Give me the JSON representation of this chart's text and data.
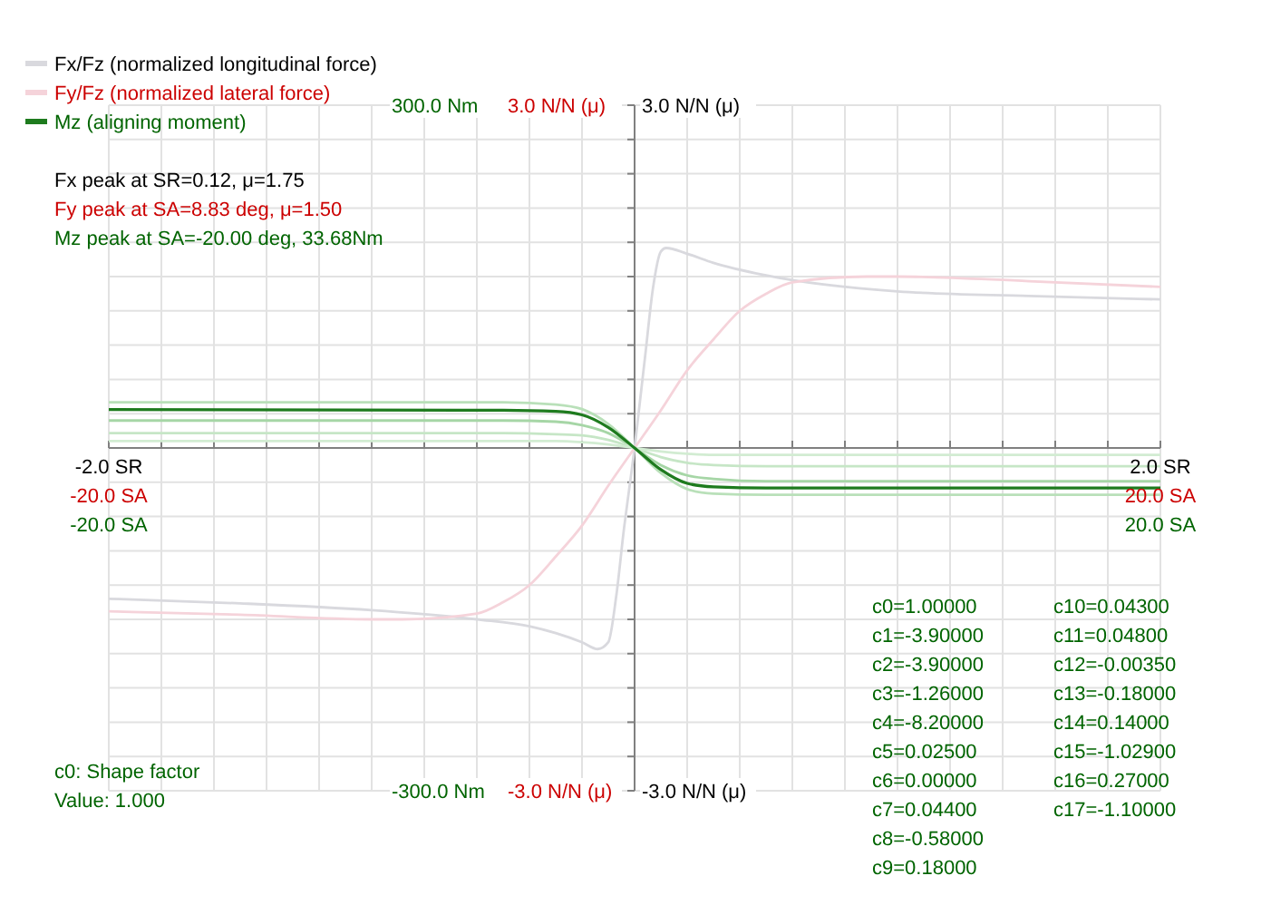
{
  "chart_data": {
    "type": "line",
    "xlim": [
      -20,
      20
    ],
    "xticks": [
      {
        "value": -20,
        "label": "-20.0 SA"
      },
      {
        "value": -18,
        "label": null
      },
      {
        "value": -16,
        "label": null
      },
      {
        "value": -14,
        "label": null
      },
      {
        "value": -12,
        "label": null
      },
      {
        "value": -10,
        "label": null
      },
      {
        "value": -8,
        "label": null
      },
      {
        "value": -6,
        "label": null
      },
      {
        "value": -4,
        "label": null
      },
      {
        "value": -2,
        "label": null
      },
      {
        "value": 0,
        "label": null
      },
      {
        "value": 2,
        "label": null
      },
      {
        "value": 4,
        "label": null
      },
      {
        "value": 6,
        "label": null
      },
      {
        "value": 8,
        "label": null
      },
      {
        "value": 10,
        "label": null
      },
      {
        "value": 12,
        "label": null
      },
      {
        "value": 14,
        "label": null
      },
      {
        "value": 16,
        "label": null
      },
      {
        "value": 18,
        "label": null
      },
      {
        "value": 20,
        "label": "20.0 SA"
      }
    ],
    "x2lim": [
      -2,
      2
    ],
    "x2ticks": [
      {
        "value": -2,
        "label": "-2.0 SR"
      },
      {
        "value": 2,
        "label": "2.0 SR"
      }
    ],
    "ylim": [
      -3,
      3
    ],
    "yticks": [
      {
        "value": -3,
        "label": "-3.0 N/N (μ)"
      },
      {
        "value": -2.7,
        "label": null
      },
      {
        "value": -2.4,
        "label": null
      },
      {
        "value": -2.1,
        "label": null
      },
      {
        "value": -1.8,
        "label": null
      },
      {
        "value": -1.5,
        "label": null
      },
      {
        "value": -1.2,
        "label": null
      },
      {
        "value": -0.9,
        "label": null
      },
      {
        "value": -0.6,
        "label": null
      },
      {
        "value": -0.3,
        "label": null
      },
      {
        "value": 0,
        "label": null
      },
      {
        "value": 0.3,
        "label": null
      },
      {
        "value": 0.6,
        "label": null
      },
      {
        "value": 0.9,
        "label": null
      },
      {
        "value": 1.2,
        "label": null
      },
      {
        "value": 1.5,
        "label": null
      },
      {
        "value": 1.8,
        "label": null
      },
      {
        "value": 2.1,
        "label": null
      },
      {
        "value": 2.4,
        "label": null
      },
      {
        "value": 2.7,
        "label": null
      },
      {
        "value": 3,
        "label": "3.0 N/N (μ)"
      }
    ],
    "y2lim": [
      -300,
      300
    ],
    "y2ticks": [
      {
        "value": -300,
        "label": "-300.0 Nm"
      },
      {
        "value": 300,
        "label": "300.0 Nm"
      }
    ],
    "y3lim": [
      -3,
      3
    ],
    "y3ticks": [
      {
        "value": -3,
        "label": "-3.0 N/N (μ)"
      },
      {
        "value": 3,
        "label": "3.0 N/N (μ)"
      }
    ],
    "grid": true,
    "legend": "top left",
    "series": [
      {
        "name": "Fx/Fz (normalized longitudinal force)",
        "axis": "x2",
        "color": "#d9d9de",
        "x": [
          -2,
          -1.5,
          -1,
          -0.6,
          -0.4,
          -0.3,
          -0.2,
          -0.14,
          -0.1,
          -0.07,
          -0.04,
          -0.02,
          0,
          0.02,
          0.04,
          0.07,
          0.1,
          0.12,
          0.2,
          0.3,
          0.5,
          1,
          1.5,
          2
        ],
        "values": [
          -1.32,
          -1.36,
          -1.42,
          -1.5,
          -1.56,
          -1.62,
          -1.7,
          -1.76,
          -1.7,
          -1.3,
          -0.7,
          -0.35,
          0,
          0.4,
          0.8,
          1.4,
          1.72,
          1.75,
          1.7,
          1.62,
          1.51,
          1.37,
          1.33,
          1.3
        ]
      },
      {
        "name": "Fy/Fz (normalized lateral force)",
        "color": "#f5d3da",
        "x": [
          -20,
          -15,
          -10,
          -8.83,
          -6,
          -5,
          -4,
          -3,
          -2,
          -1,
          0,
          1,
          2,
          3,
          4,
          5,
          6,
          8.83,
          10,
          15,
          20
        ],
        "values": [
          -1.43,
          -1.46,
          -1.5,
          -1.5,
          -1.45,
          -1.35,
          -1.2,
          -0.95,
          -0.68,
          -0.33,
          0,
          0.33,
          0.68,
          0.95,
          1.2,
          1.35,
          1.45,
          1.5,
          1.5,
          1.46,
          1.41
        ]
      },
      {
        "color": "#b9e0b9",
        "axis": "y2",
        "x": [
          -20,
          -5,
          -3,
          -2,
          -1,
          0,
          1,
          2,
          3,
          5,
          20
        ],
        "values": [
          40,
          40,
          38,
          34,
          21,
          0,
          -22,
          -36,
          -40,
          -41,
          -41
        ]
      },
      {
        "color": "#a6d6a6",
        "axis": "y2",
        "x": [
          -20,
          -5,
          -3,
          -2,
          -1,
          0,
          1,
          2,
          3,
          5,
          20
        ],
        "values": [
          24,
          24,
          23,
          20,
          13,
          0,
          -15,
          -24,
          -27,
          -29,
          -29
        ]
      },
      {
        "color": "#c6e6c6",
        "axis": "y2",
        "x": [
          -20,
          -5,
          -3,
          -2,
          -1,
          0,
          1,
          2,
          3,
          5,
          20
        ],
        "values": [
          13,
          13,
          12,
          11,
          7,
          0,
          -8,
          -13,
          -15,
          -16,
          -16
        ]
      },
      {
        "color": "#d2ecd2",
        "axis": "y2",
        "x": [
          -20,
          -5,
          -3,
          -2,
          -1,
          0,
          1,
          2,
          3,
          5,
          20
        ],
        "values": [
          6,
          6,
          6,
          5,
          3,
          0,
          -3,
          -5,
          -6,
          -6,
          -6
        ]
      },
      {
        "name": "Mz (aligning moment)",
        "axis": "y2",
        "color": "#1e7b1e",
        "x": [
          -20,
          -5,
          -3,
          -2,
          -1,
          0,
          1,
          2,
          3,
          5,
          20
        ],
        "values": [
          33.68,
          33,
          32,
          29,
          18,
          0,
          -19,
          -31,
          -34,
          -35,
          -35
        ]
      }
    ],
    "annotations": [
      "Fx peak at SR=0.12, μ=1.75",
      "Fy peak at SA=8.83 deg, μ=1.50",
      "Mz peak at SA=-20.00 deg, 33.68Nm",
      "c0: Shape factor",
      "Value: 1.000",
      "-20.0 SA",
      "20.0 SA",
      "c0=1.00000",
      "c1=-3.90000",
      "c2=-3.90000",
      "c3=-1.26000",
      "c4=-8.20000",
      "c5=0.02500",
      "c6=0.00000",
      "c7=0.04400",
      "c8=-0.58000",
      "c9=0.18000",
      "c10=0.04300",
      "c11=0.04800",
      "c12=-0.00350",
      "c13=-0.18000",
      "c14=0.14000",
      "c15=-1.02900",
      "c16=0.27000",
      "c17=-1.10000"
    ]
  }
}
